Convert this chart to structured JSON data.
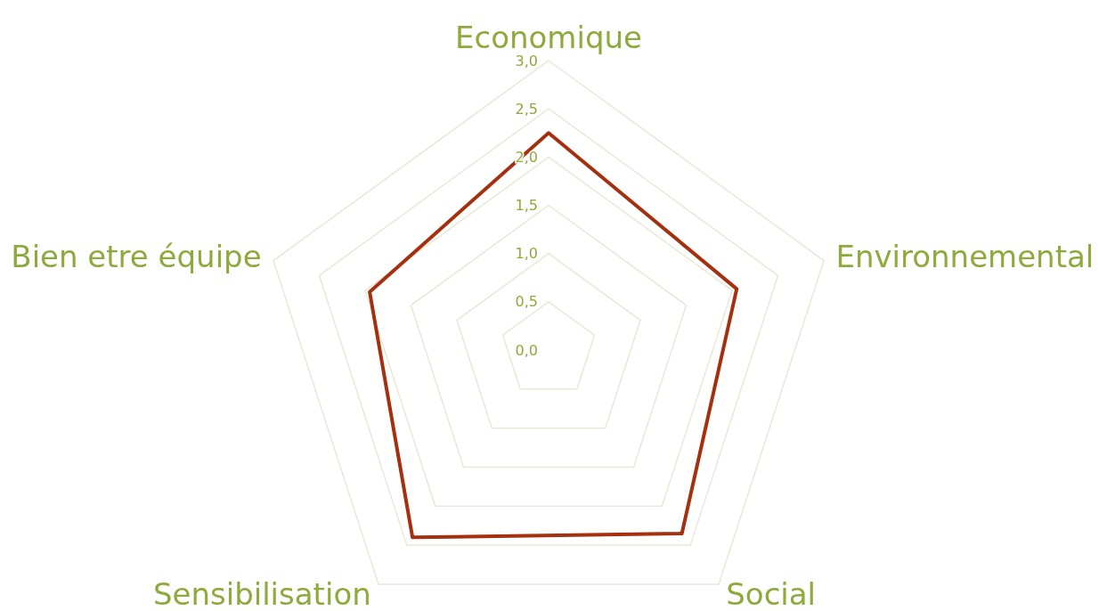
{
  "chart_data": {
    "type": "radar",
    "categories": [
      "Economique",
      "Environnemental",
      "Social",
      "Sensibilisation",
      "Bien etre équipe"
    ],
    "series": [
      {
        "color": "#a5300f",
        "values": [
          2.25,
          2.05,
          2.35,
          2.4,
          1.95
        ]
      }
    ],
    "ylim": [
      0,
      3
    ],
    "yticks": [
      {
        "value": 0,
        "label": "0,0"
      },
      {
        "value": 0.5,
        "label": "0,5"
      },
      {
        "value": 1,
        "label": "1,0"
      },
      {
        "value": 1.5,
        "label": "1,5"
      },
      {
        "value": 2,
        "label": "2,0"
      },
      {
        "value": 2.5,
        "label": "2,5"
      },
      {
        "value": 3,
        "label": "3,0"
      }
    ],
    "grid": true
  }
}
